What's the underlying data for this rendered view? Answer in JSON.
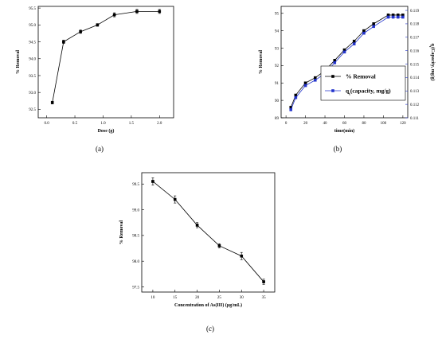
{
  "chart_data": [
    {
      "type": "line",
      "panel_label": "(a)",
      "xlabel": "Dose (g)",
      "ylabel": "% Removal",
      "xlim": [
        -0.15,
        2.25
      ],
      "ylim": [
        92.25,
        95.55
      ],
      "xticks": [
        "0.0",
        "0.5",
        "1.0",
        "1.5",
        "2.0"
      ],
      "yticks": [
        "92.5",
        "93.0",
        "93.5",
        "94.0",
        "94.5",
        "95.0",
        "95.5"
      ],
      "series": [
        {
          "x": [
            0.1,
            0.3,
            0.6,
            0.9,
            1.2,
            1.6,
            2.0
          ],
          "y": [
            92.7,
            94.5,
            94.8,
            95.0,
            95.3,
            95.4,
            95.4
          ],
          "err": [
            0.04,
            0.05,
            0.05,
            0.04,
            0.06,
            0.06,
            0.06
          ],
          "color": "#000000",
          "marker": "square"
        }
      ],
      "grid": false
    },
    {
      "type": "line",
      "panel_label": "(b)",
      "xlabel": "time(min)",
      "ylabel": "% Removal",
      "y2label_main": "q",
      "y2label_sub": "t",
      "y2label_rest": "(Capacity, mg/g)",
      "xlim": [
        -5,
        125
      ],
      "ylim": [
        89,
        95.4
      ],
      "y2lim": [
        0.111,
        0.1193
      ],
      "xticks": [
        "0",
        "20",
        "40",
        "60",
        "80",
        "100",
        "120"
      ],
      "yticks": [
        "89",
        "90",
        "91",
        "92",
        "93",
        "94",
        "95"
      ],
      "y2ticks": [
        "0.111",
        "0.112",
        "0.113",
        "0.114",
        "0.115",
        "0.116",
        "0.117",
        "0.118",
        "0.119"
      ],
      "series": [
        {
          "name": "% Removal",
          "x": [
            5,
            10,
            20,
            30,
            40,
            50,
            60,
            70,
            80,
            90,
            105,
            110,
            115,
            120
          ],
          "y": [
            89.6,
            90.3,
            91.0,
            91.3,
            91.7,
            92.3,
            92.9,
            93.4,
            94.0,
            94.4,
            94.9,
            94.9,
            94.9,
            94.9
          ],
          "color": "#000000",
          "marker": "square",
          "axis": "left"
        },
        {
          "name_main": "q",
          "name_sub": "t",
          "name_rest": "(capacity, mg/g)",
          "x": [
            5,
            10,
            20,
            30,
            40,
            50,
            60,
            70,
            80,
            90,
            105,
            110,
            115,
            120
          ],
          "y": [
            0.1116,
            0.1125,
            0.1134,
            0.1138,
            0.1143,
            0.1151,
            0.1159,
            0.1165,
            0.1173,
            0.1178,
            0.1185,
            0.1185,
            0.1185,
            0.1185
          ],
          "color": "#2233cc",
          "marker": "square",
          "axis": "right"
        }
      ],
      "legend": "bottom-right",
      "grid": false
    },
    {
      "type": "line",
      "panel_label": "(c)",
      "xlabel": "Concentration of As(III) (µg/mL)",
      "ylabel": "% Removal",
      "xlim": [
        7.5,
        37.5
      ],
      "ylim": [
        97.4,
        99.72
      ],
      "xticks": [
        "10",
        "15",
        "20",
        "25",
        "30",
        "35"
      ],
      "yticks": [
        "97.5",
        "98.0",
        "98.5",
        "99.0",
        "99.5"
      ],
      "series": [
        {
          "x": [
            10,
            15,
            20,
            25,
            30,
            35
          ],
          "y": [
            99.55,
            99.2,
            98.7,
            98.3,
            98.1,
            97.6
          ],
          "err": [
            0.07,
            0.07,
            0.05,
            0.04,
            0.07,
            0.05
          ],
          "color": "#000000",
          "marker": "square"
        }
      ],
      "grid": false
    }
  ]
}
